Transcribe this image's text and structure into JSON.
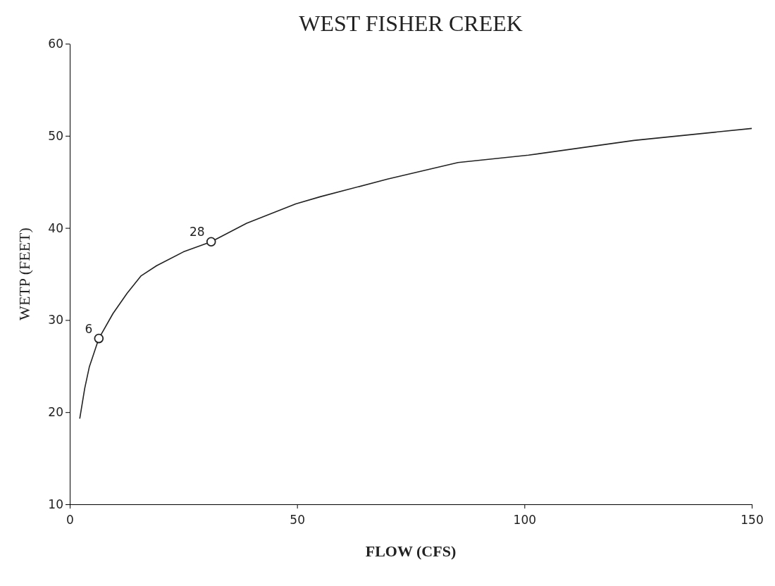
{
  "chart_data": {
    "type": "line",
    "title": "WEST FISHER CREEK",
    "xlabel": "FLOW (CFS)",
    "ylabel": "WETP (FEET)",
    "xlim": [
      0,
      150
    ],
    "xticks": [
      0,
      50,
      100,
      150
    ],
    "ylim": [
      10,
      60
    ],
    "yticks": [
      10,
      20,
      30,
      40,
      50,
      60
    ],
    "grid": false,
    "series": [
      {
        "color": "#222222",
        "marker": "none",
        "line_style": "solid",
        "x": [
          2.2,
          3.3,
          4.3,
          6.4,
          9.5,
          12.6,
          15.7,
          19.1,
          25,
          31.1,
          38.9,
          49.7,
          55.2,
          69.9,
          85.4,
          100.9,
          124.1,
          150
        ],
        "values": [
          19.3,
          22.6,
          24.9,
          28.0,
          30.7,
          32.9,
          34.8,
          35.9,
          37.4,
          38.5,
          40.5,
          42.6,
          43.4,
          45.3,
          47.1,
          47.9,
          49.5,
          50.8
        ]
      },
      {
        "color": "#222222",
        "type": "scatter",
        "marker": "circle",
        "x": [
          6.4,
          31.1
        ],
        "values": [
          28.0,
          38.5
        ]
      }
    ],
    "annotations": [
      {
        "text": "6",
        "x": 6.4,
        "y": 28.0
      },
      {
        "text": "28",
        "x": 31.1,
        "y": 38.5
      }
    ]
  }
}
